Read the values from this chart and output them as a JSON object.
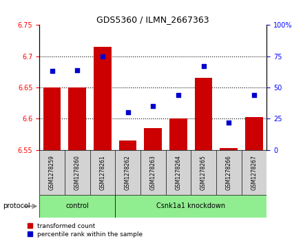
{
  "title": "GDS5360 / ILMN_2667363",
  "samples": [
    "GSM1278259",
    "GSM1278260",
    "GSM1278261",
    "GSM1278262",
    "GSM1278263",
    "GSM1278264",
    "GSM1278265",
    "GSM1278266",
    "GSM1278267"
  ],
  "bar_values": [
    6.65,
    6.65,
    6.715,
    6.565,
    6.585,
    6.6,
    6.665,
    6.553,
    6.603
  ],
  "scatter_values": [
    63,
    64,
    75,
    30,
    35,
    44,
    67,
    22,
    44
  ],
  "bar_color": "#cc0000",
  "scatter_color": "#0000cc",
  "ylim_left": [
    6.55,
    6.75
  ],
  "ylim_right": [
    0,
    100
  ],
  "yticks_left": [
    6.55,
    6.6,
    6.65,
    6.7,
    6.75
  ],
  "ytick_labels_left": [
    "6.55",
    "6.6",
    "6.65",
    "6.7",
    "6.75"
  ],
  "yticks_right": [
    0,
    25,
    50,
    75,
    100
  ],
  "ytick_labels_right": [
    "0",
    "25",
    "50",
    "75",
    "100%"
  ],
  "control_count": 3,
  "knockdown_count": 6,
  "control_label": "control",
  "knockdown_label": "Csnk1a1 knockdown",
  "protocol_label": "protocol",
  "legend_bar_label": "transformed count",
  "legend_scatter_label": "percentile rank within the sample",
  "bar_width": 0.7,
  "grid_color": "black",
  "grid_linestyle": "dotted",
  "grid_linewidth": 0.8,
  "label_box_color": "#d3d3d3",
  "protocol_bar_color": "#90ee90",
  "title_fontsize": 9,
  "axis_tick_fontsize": 7,
  "sample_label_fontsize": 5.5,
  "protocol_label_fontsize": 7,
  "legend_fontsize": 6.5
}
